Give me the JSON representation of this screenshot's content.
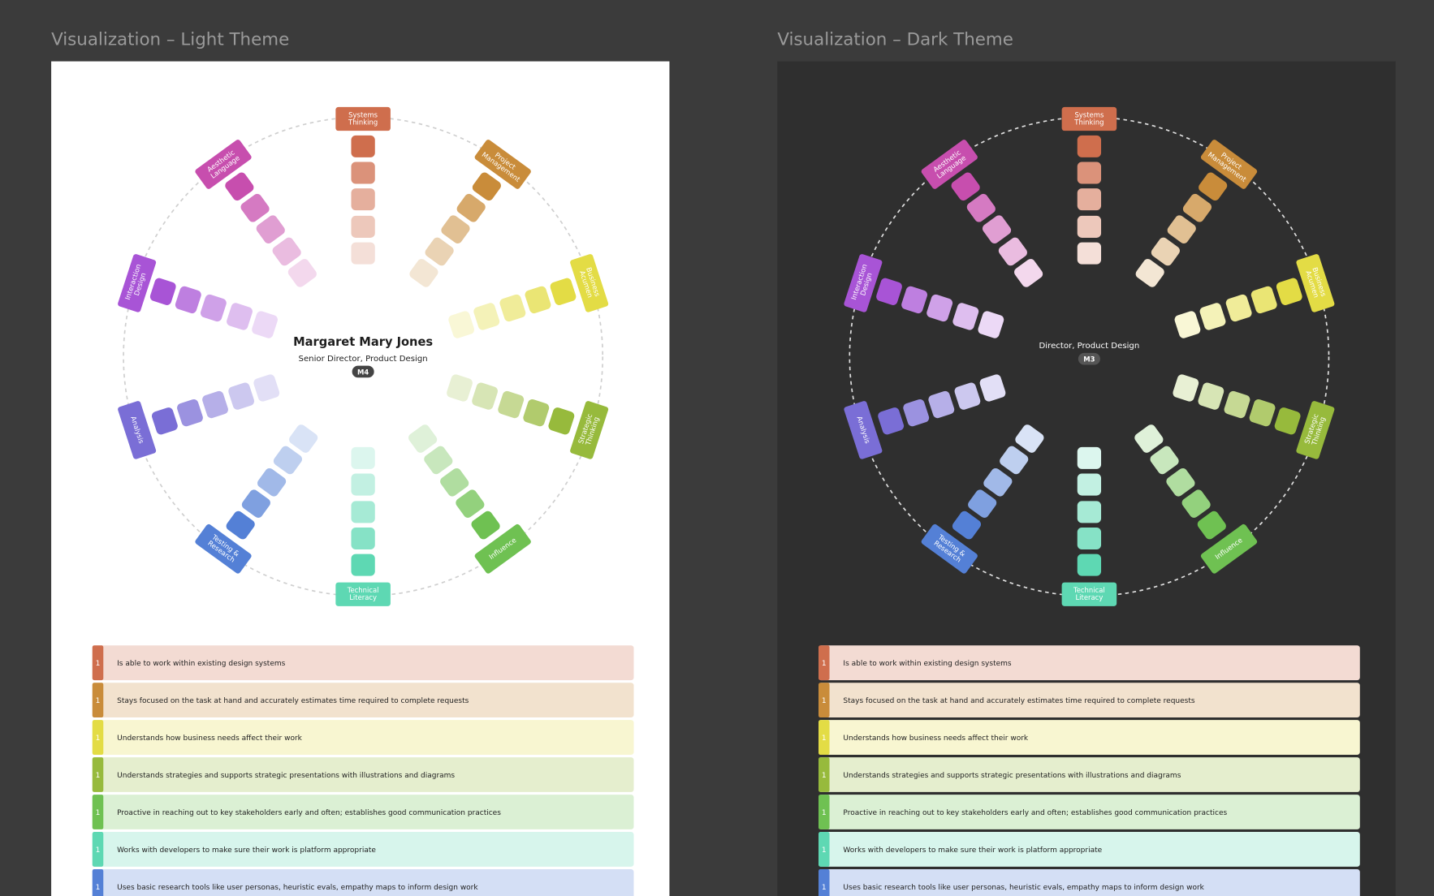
{
  "frames": [
    {
      "title": "Visualization – Light Theme",
      "theme": "light",
      "name": "Margaret Mary Jones",
      "role": "Senior Director, Product Design",
      "level": "M4"
    },
    {
      "title": "Visualization – Dark Theme",
      "theme": "dark",
      "role": "Director, Product Design",
      "level": "M3"
    }
  ],
  "skills": [
    {
      "label": "Systems Thinking",
      "color": "#cf6e4d"
    },
    {
      "label": "Project Management",
      "color": "#c98c3a"
    },
    {
      "label": "Business Acumen",
      "color": "#e3dc45"
    },
    {
      "label": "Strategic Thinking",
      "color": "#97ba3c"
    },
    {
      "label": "Influence",
      "color": "#6fc152"
    },
    {
      "label": "Technical Literacy",
      "color": "#5ed8b3"
    },
    {
      "label": "Testing & Research",
      "color": "#5480d6"
    },
    {
      "label": "Analysis",
      "color": "#7a6ed6"
    },
    {
      "label": "Interaction Design",
      "color": "#a854d6"
    },
    {
      "label": "Aesthetic Language",
      "color": "#c74eae"
    }
  ],
  "criteria": [
    {
      "level": "1",
      "text": "Is able to work within existing design systems"
    },
    {
      "level": "1",
      "text": "Stays focused on the task at hand and accurately estimates time required to complete requests"
    },
    {
      "level": "1",
      "text": "Understands how business needs affect their work"
    },
    {
      "level": "1",
      "text": "Understands strategies and supports strategic presentations with illustrations and diagrams"
    },
    {
      "level": "1",
      "text": "Proactive in reaching out to key stakeholders early and often; establishes good communication practices"
    },
    {
      "level": "1",
      "text": "Works with developers to make sure their work is platform appropriate"
    },
    {
      "level": "1",
      "text": "Uses basic research tools like user personas, heuristic evals, empathy maps to inform design work"
    }
  ]
}
